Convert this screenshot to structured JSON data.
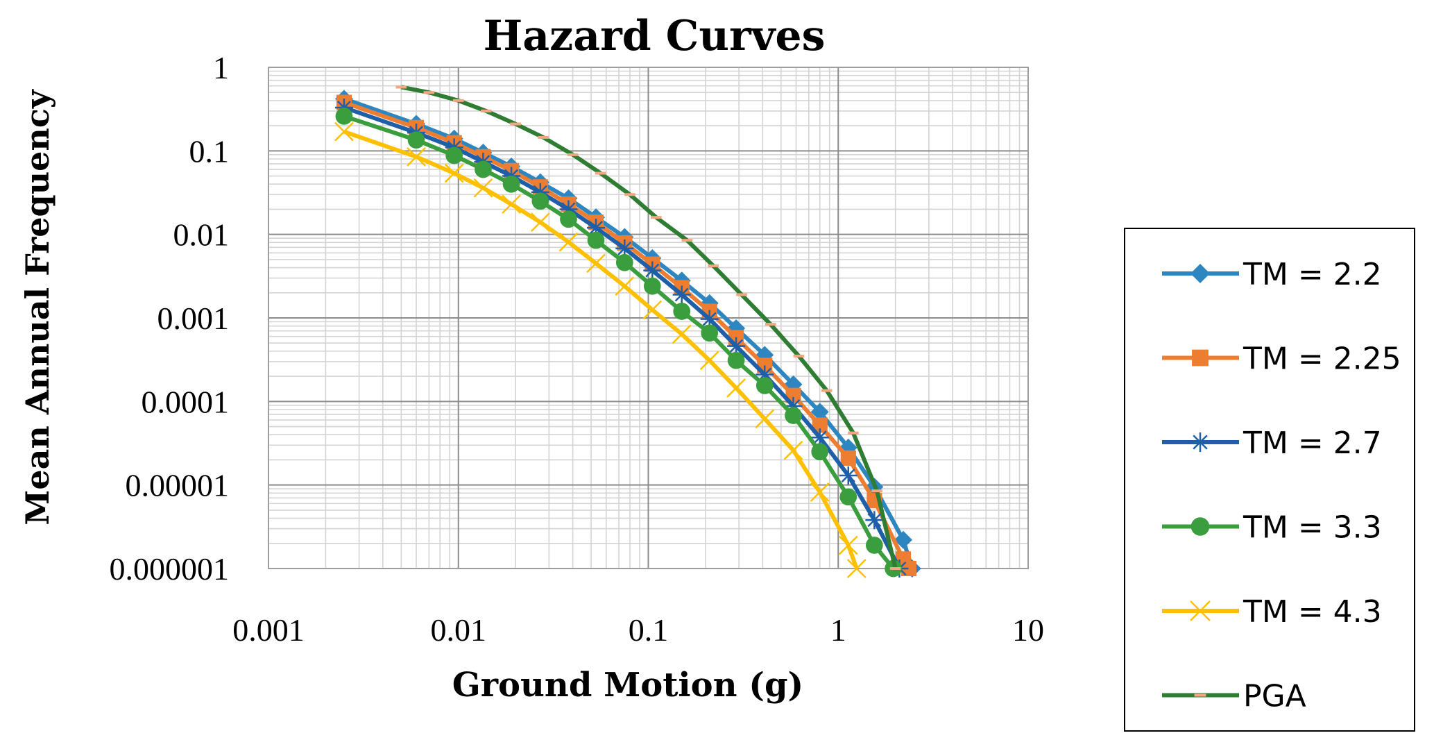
{
  "chart_data": {
    "type": "line",
    "title": "Hazard Curves",
    "xlabel": "Ground Motion (g)",
    "ylabel": "Mean Annual Frequency",
    "xscale": "log",
    "yscale": "log",
    "xlim": [
      0.001,
      10
    ],
    "ylim": [
      1e-06,
      1
    ],
    "x_tick_labels": [
      "0.001",
      "0.01",
      "0.1",
      "1",
      "10"
    ],
    "y_tick_labels": [
      "0.000001",
      "0.00001",
      "0.0001",
      "0.001",
      "0.01",
      "0.1",
      "1"
    ],
    "grid": true,
    "legend_position": "right",
    "series": [
      {
        "name": "TM = 2.2",
        "color": "#2E86C1",
        "marker": "diamond",
        "x": [
          0.0025,
          0.006,
          0.0095,
          0.0135,
          0.019,
          0.027,
          0.038,
          0.053,
          0.075,
          0.105,
          0.15,
          0.21,
          0.29,
          0.41,
          0.58,
          0.8,
          1.13,
          1.55,
          2.2,
          2.45
        ],
        "y": [
          0.42,
          0.21,
          0.14,
          0.095,
          0.065,
          0.042,
          0.027,
          0.016,
          0.0093,
          0.0052,
          0.0028,
          0.0015,
          0.00075,
          0.00036,
          0.00016,
          7.5e-05,
          2.8e-05,
          9.5e-06,
          2.2e-06,
          1e-06
        ]
      },
      {
        "name": "TM = 2.25",
        "color": "#ED7D31",
        "marker": "square",
        "x": [
          0.0025,
          0.006,
          0.0095,
          0.0135,
          0.019,
          0.027,
          0.038,
          0.053,
          0.075,
          0.105,
          0.15,
          0.21,
          0.29,
          0.41,
          0.58,
          0.8,
          1.13,
          1.55,
          2.2,
          2.35
        ],
        "y": [
          0.38,
          0.19,
          0.125,
          0.085,
          0.058,
          0.037,
          0.023,
          0.014,
          0.0079,
          0.0044,
          0.0023,
          0.0012,
          0.00058,
          0.00027,
          0.000118,
          5.2e-05,
          2.1e-05,
          6.5e-06,
          1.3e-06,
          1e-06
        ]
      },
      {
        "name": "TM = 2.7",
        "color": "#1F5FA8",
        "marker": "asterisk",
        "x": [
          0.0025,
          0.006,
          0.0095,
          0.0135,
          0.019,
          0.027,
          0.038,
          0.053,
          0.075,
          0.105,
          0.15,
          0.21,
          0.29,
          0.41,
          0.58,
          0.8,
          1.13,
          1.55,
          2.1
        ],
        "y": [
          0.33,
          0.165,
          0.11,
          0.074,
          0.05,
          0.032,
          0.02,
          0.012,
          0.0068,
          0.0037,
          0.0019,
          0.00097,
          0.00046,
          0.00021,
          8.8e-05,
          3.7e-05,
          1.3e-05,
          3.8e-06,
          1e-06
        ]
      },
      {
        "name": "TM = 3.3",
        "color": "#3A9E3E",
        "marker": "circle",
        "x": [
          0.0025,
          0.006,
          0.0095,
          0.0135,
          0.019,
          0.027,
          0.038,
          0.053,
          0.075,
          0.105,
          0.15,
          0.21,
          0.29,
          0.41,
          0.58,
          0.8,
          1.13,
          1.55,
          1.95
        ],
        "y": [
          0.26,
          0.135,
          0.088,
          0.06,
          0.04,
          0.025,
          0.0152,
          0.0085,
          0.0046,
          0.0024,
          0.0012,
          0.00066,
          0.00031,
          0.000155,
          6.8e-05,
          2.5e-05,
          7.2e-06,
          1.9e-06,
          1e-06
        ]
      },
      {
        "name": "TM = 4.3",
        "color": "#FFC000",
        "marker": "x",
        "x": [
          0.0025,
          0.006,
          0.0095,
          0.0135,
          0.019,
          0.027,
          0.038,
          0.053,
          0.075,
          0.105,
          0.15,
          0.21,
          0.29,
          0.41,
          0.58,
          0.8,
          1.13,
          1.25
        ],
        "y": [
          0.17,
          0.085,
          0.054,
          0.036,
          0.023,
          0.014,
          0.0081,
          0.0045,
          0.0024,
          0.00125,
          0.00064,
          0.00031,
          0.000145,
          6.2e-05,
          2.6e-05,
          8.2e-06,
          1.9e-06,
          1e-06
        ]
      },
      {
        "name": "PGA",
        "color": "#2E7D32",
        "marker": "dash",
        "x": [
          0.005,
          0.007,
          0.01,
          0.014,
          0.02,
          0.028,
          0.04,
          0.056,
          0.08,
          0.11,
          0.16,
          0.22,
          0.31,
          0.44,
          0.62,
          0.87,
          1.2,
          1.6,
          2.0
        ],
        "y": [
          0.58,
          0.5,
          0.4,
          0.3,
          0.21,
          0.145,
          0.09,
          0.054,
          0.03,
          0.016,
          0.0085,
          0.0042,
          0.0019,
          0.00084,
          0.00035,
          0.000135,
          4.2e-05,
          8.5e-06,
          1e-06
        ]
      }
    ]
  }
}
